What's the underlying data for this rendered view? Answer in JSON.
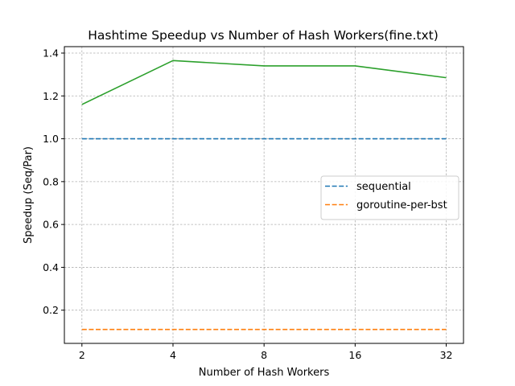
{
  "chart_data": {
    "type": "line",
    "title": "Hashtime Speedup vs Number of Hash Workers(fine.txt)",
    "xlabel": "Number of Hash Workers",
    "ylabel": "Speedup (Seq/Par)",
    "x_scale": "log2",
    "categories": [
      "2",
      "4",
      "8",
      "16",
      "32"
    ],
    "x": [
      2,
      4,
      8,
      16,
      32
    ],
    "xlim": [
      1.75,
      36.5
    ],
    "ylim": [
      0.045,
      1.43
    ],
    "yticks": [
      "0.2",
      "0.4",
      "0.6",
      "0.8",
      "1.0",
      "1.2",
      "1.4"
    ],
    "ytick_values": [
      0.2,
      0.4,
      0.6,
      0.8,
      1.0,
      1.2,
      1.4
    ],
    "grid": true,
    "legend_position": "center-right",
    "series": [
      {
        "name": "sequential",
        "values": [
          1.0,
          1.0,
          1.0,
          1.0,
          1.0
        ],
        "color": "#1f77b4",
        "style": "dashed",
        "in_legend": true
      },
      {
        "name": "goroutine-per-bst",
        "values": [
          0.11,
          0.11,
          0.11,
          0.11,
          0.11
        ],
        "color": "#ff7f0e",
        "style": "dashed",
        "in_legend": true
      },
      {
        "name": "",
        "values": [
          1.16,
          1.365,
          1.34,
          1.34,
          1.285
        ],
        "color": "#2ca02c",
        "style": "solid",
        "in_legend": false
      }
    ]
  }
}
